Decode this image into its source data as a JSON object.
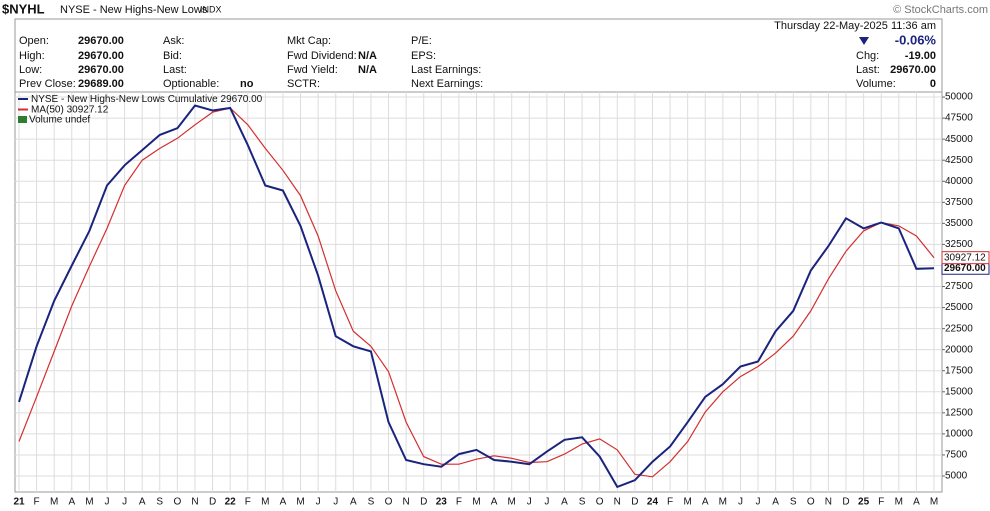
{
  "header": {
    "symbol": "$NYHL",
    "name": "NYSE - New Highs-New Lows",
    "exchange": "INDX",
    "copyright": "© StockCharts.com",
    "date": "Thursday  22-May-2025 11:36 am",
    "fields": [
      [
        {
          "label": "Open:",
          "value": "29670.00"
        },
        {
          "label": "High:",
          "value": "29670.00"
        },
        {
          "label": "Low:",
          "value": "29670.00"
        },
        {
          "label": "Prev Close:",
          "value": "29689.00"
        }
      ],
      [
        {
          "label": "Ask:"
        },
        {
          "label": "Bid:"
        },
        {
          "label": "Last:"
        },
        {
          "label": "Optionable:",
          "value": "no"
        }
      ],
      [
        {
          "label": "Mkt Cap:"
        },
        {
          "label": "Fwd Dividend:",
          "value": "N/A"
        },
        {
          "label": "Fwd Yield:",
          "value": "N/A"
        },
        {
          "label": "SCTR:"
        }
      ],
      [
        {
          "label": "P/E:"
        },
        {
          "label": "EPS:"
        },
        {
          "label": "Last Earnings:"
        },
        {
          "label": "Next Earnings:"
        }
      ]
    ],
    "change_pct": "-0.06%",
    "right_fields": [
      {
        "label": "Chg:",
        "value": "-19.00"
      },
      {
        "label": "Last:",
        "value": "29670.00"
      },
      {
        "label": "Volume:",
        "value": "0"
      }
    ]
  },
  "chart_data": {
    "type": "line",
    "categories": [
      "21",
      "F",
      "M",
      "A",
      "M",
      "J",
      "J",
      "A",
      "S",
      "O",
      "N",
      "D",
      "22",
      "F",
      "M",
      "A",
      "M",
      "J",
      "J",
      "A",
      "S",
      "O",
      "N",
      "D",
      "23",
      "F",
      "M",
      "A",
      "M",
      "J",
      "J",
      "A",
      "S",
      "O",
      "N",
      "D",
      "24",
      "F",
      "M",
      "A",
      "M",
      "J",
      "J",
      "A",
      "S",
      "O",
      "N",
      "D",
      "25",
      "F",
      "M",
      "A",
      "M"
    ],
    "series": [
      {
        "name": "NYSE - New Highs-New Lows Cumulative",
        "last_label": "29670.00",
        "color": "#1a237e",
        "values": [
          13800,
          20400,
          25800,
          30000,
          34100,
          39500,
          41900,
          43700,
          45500,
          46300,
          49000,
          48400,
          48700,
          44300,
          39500,
          38900,
          34700,
          28800,
          21600,
          20400,
          19800,
          11400,
          6900,
          6400,
          6100,
          7600,
          8100,
          6900,
          6700,
          6400,
          7900,
          9300,
          9600,
          7300,
          3700,
          4500,
          6700,
          8500,
          11400,
          14400,
          15900,
          18000,
          18600,
          22200,
          24600,
          29400,
          32300,
          35600,
          34400,
          35100,
          34400,
          29600,
          29670
        ]
      },
      {
        "name": "MA(50)",
        "last_label": "30927.12",
        "color": "#d32f2f",
        "values": [
          9100,
          14400,
          19800,
          25200,
          29900,
          34400,
          39500,
          42500,
          43900,
          45100,
          46700,
          48200,
          48700,
          46700,
          43900,
          41300,
          38300,
          33500,
          27000,
          22200,
          20400,
          17400,
          11400,
          7300,
          6400,
          6400,
          7000,
          7400,
          7100,
          6600,
          6700,
          7600,
          8800,
          9400,
          8100,
          5200,
          4900,
          6700,
          9100,
          12600,
          15000,
          16800,
          18000,
          19600,
          21600,
          24600,
          28400,
          31700,
          34100,
          35100,
          34700,
          33500,
          30927.12
        ]
      }
    ],
    "volume_legend": "Volume undef",
    "ylim": [
      3100,
      50600
    ],
    "yticks": [
      5000,
      7500,
      10000,
      12500,
      15000,
      17500,
      20000,
      22500,
      25000,
      27500,
      30000,
      32500,
      35000,
      37500,
      40000,
      42500,
      45000,
      47500,
      50000
    ],
    "grid": true
  }
}
